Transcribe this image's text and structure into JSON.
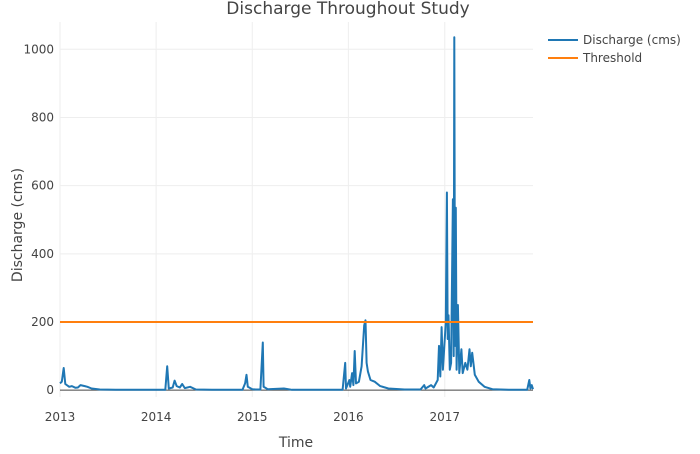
{
  "chart_data": {
    "type": "line",
    "title": "Discharge Throughout Study",
    "xlabel": "Time",
    "ylabel": "Discharge (cms)",
    "xlim": [
      "2013-01-01",
      "2017-12-02"
    ],
    "ylim": [
      -20,
      1080
    ],
    "x_ticks": [
      "2013-01-01",
      "2014-01-01",
      "2015-01-01",
      "2016-01-01",
      "2017-01-01"
    ],
    "x_tick_labels": [
      "2013",
      "2014",
      "2015",
      "2016",
      "2017"
    ],
    "y_ticks": [
      0,
      200,
      400,
      600,
      800,
      1000
    ],
    "y_tick_labels": [
      "0",
      "200",
      "400",
      "600",
      "800",
      "1000"
    ],
    "grid": true,
    "legend": "top-right",
    "series": [
      {
        "name": "Discharge (cms)",
        "color": "#1f77b4",
        "points": [
          [
            "2013-01-01",
            20
          ],
          [
            "2013-01-08",
            25
          ],
          [
            "2013-01-15",
            65
          ],
          [
            "2013-01-21",
            18
          ],
          [
            "2013-02-05",
            10
          ],
          [
            "2013-02-15",
            12
          ],
          [
            "2013-03-01",
            7
          ],
          [
            "2013-03-10",
            8
          ],
          [
            "2013-03-20",
            15
          ],
          [
            "2013-04-05",
            12
          ],
          [
            "2013-04-15",
            10
          ],
          [
            "2013-05-01",
            5
          ],
          [
            "2013-06-01",
            2
          ],
          [
            "2013-08-01",
            1
          ],
          [
            "2013-12-31",
            1
          ],
          [
            "2014-02-05",
            1
          ],
          [
            "2014-02-12",
            70
          ],
          [
            "2014-02-18",
            5
          ],
          [
            "2014-03-05",
            8
          ],
          [
            "2014-03-12",
            28
          ],
          [
            "2014-03-20",
            12
          ],
          [
            "2014-04-01",
            8
          ],
          [
            "2014-04-10",
            18
          ],
          [
            "2014-04-20",
            6
          ],
          [
            "2014-05-10",
            10
          ],
          [
            "2014-06-01",
            2
          ],
          [
            "2014-08-01",
            1
          ],
          [
            "2014-11-25",
            1
          ],
          [
            "2014-12-05",
            20
          ],
          [
            "2014-12-10",
            45
          ],
          [
            "2014-12-15",
            10
          ],
          [
            "2015-01-01",
            3
          ],
          [
            "2015-01-15",
            2
          ],
          [
            "2015-02-01",
            2
          ],
          [
            "2015-02-10",
            140
          ],
          [
            "2015-02-13",
            10
          ],
          [
            "2015-03-01",
            3
          ],
          [
            "2015-05-01",
            5
          ],
          [
            "2015-06-01",
            1
          ],
          [
            "2015-12-10",
            1
          ],
          [
            "2015-12-20",
            80
          ],
          [
            "2015-12-23",
            5
          ],
          [
            "2016-01-05",
            30
          ],
          [
            "2016-01-08",
            10
          ],
          [
            "2016-01-15",
            50
          ],
          [
            "2016-01-20",
            15
          ],
          [
            "2016-01-25",
            115
          ],
          [
            "2016-01-30",
            20
          ],
          [
            "2016-02-10",
            25
          ],
          [
            "2016-02-20",
            70
          ],
          [
            "2016-03-01",
            190
          ],
          [
            "2016-03-06",
            205
          ],
          [
            "2016-03-10",
            80
          ],
          [
            "2016-03-15",
            55
          ],
          [
            "2016-03-25",
            30
          ],
          [
            "2016-04-10",
            25
          ],
          [
            "2016-05-01",
            12
          ],
          [
            "2016-06-01",
            5
          ],
          [
            "2016-08-01",
            2
          ],
          [
            "2016-10-01",
            2
          ],
          [
            "2016-10-15",
            15
          ],
          [
            "2016-10-20",
            5
          ],
          [
            "2016-11-10",
            15
          ],
          [
            "2016-11-20",
            8
          ],
          [
            "2016-12-05",
            30
          ],
          [
            "2016-12-10",
            130
          ],
          [
            "2016-12-15",
            40
          ],
          [
            "2016-12-20",
            185
          ],
          [
            "2016-12-25",
            60
          ],
          [
            "2017-01-05",
            200
          ],
          [
            "2017-01-09",
            580
          ],
          [
            "2017-01-12",
            150
          ],
          [
            "2017-01-15",
            220
          ],
          [
            "2017-01-20",
            60
          ],
          [
            "2017-01-25",
            80
          ],
          [
            "2017-02-01",
            560
          ],
          [
            "2017-02-04",
            100
          ],
          [
            "2017-02-06",
            1035
          ],
          [
            "2017-02-09",
            130
          ],
          [
            "2017-02-12",
            535
          ],
          [
            "2017-02-15",
            60
          ],
          [
            "2017-02-20",
            250
          ],
          [
            "2017-02-25",
            50
          ],
          [
            "2017-03-05",
            120
          ],
          [
            "2017-03-10",
            50
          ],
          [
            "2017-03-20",
            80
          ],
          [
            "2017-03-28",
            60
          ],
          [
            "2017-04-05",
            120
          ],
          [
            "2017-04-10",
            70
          ],
          [
            "2017-04-15",
            110
          ],
          [
            "2017-04-25",
            45
          ],
          [
            "2017-05-10",
            25
          ],
          [
            "2017-06-01",
            10
          ],
          [
            "2017-07-01",
            3
          ],
          [
            "2017-09-01",
            1
          ],
          [
            "2017-11-10",
            1
          ],
          [
            "2017-11-18",
            30
          ],
          [
            "2017-11-22",
            5
          ],
          [
            "2017-11-27",
            15
          ],
          [
            "2017-12-02",
            3
          ]
        ]
      },
      {
        "name": "Threshold",
        "color": "#ff7f0e",
        "points": [
          [
            "2013-01-01",
            200
          ],
          [
            "2017-12-02",
            200
          ]
        ]
      }
    ]
  }
}
